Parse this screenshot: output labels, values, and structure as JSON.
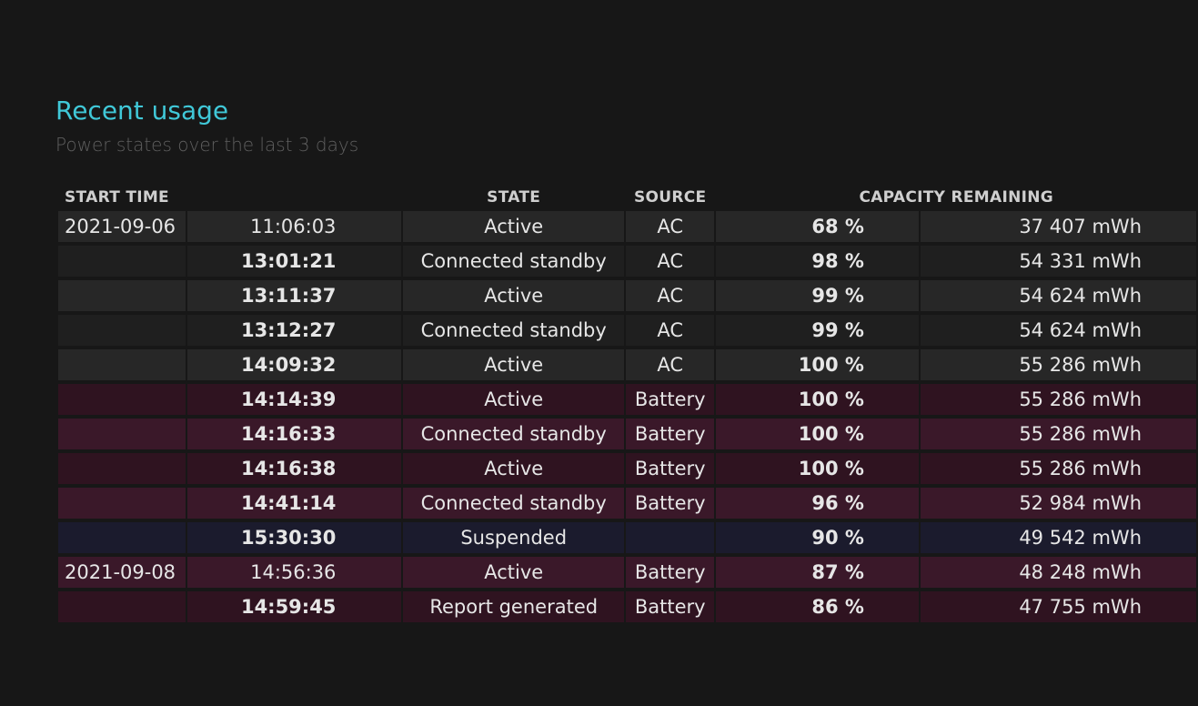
{
  "report": {
    "title": "Recent usage",
    "subtitle": "Power states over the last 3 days"
  },
  "columns": {
    "start_time": "START TIME",
    "state": "STATE",
    "source": "SOURCE",
    "capacity": "CAPACITY REMAINING"
  },
  "rows": [
    {
      "date": "2021-09-06",
      "time": "11:06:03",
      "state": "Active",
      "source": "AC",
      "percent": "68 %",
      "mwh": "37 407 mWh"
    },
    {
      "date": "",
      "time": "13:01:21",
      "state": "Connected standby",
      "source": "AC",
      "percent": "98 %",
      "mwh": "54 331 mWh"
    },
    {
      "date": "",
      "time": "13:11:37",
      "state": "Active",
      "source": "AC",
      "percent": "99 %",
      "mwh": "54 624 mWh"
    },
    {
      "date": "",
      "time": "13:12:27",
      "state": "Connected standby",
      "source": "AC",
      "percent": "99 %",
      "mwh": "54 624 mWh"
    },
    {
      "date": "",
      "time": "14:09:32",
      "state": "Active",
      "source": "AC",
      "percent": "100 %",
      "mwh": "55 286 mWh"
    },
    {
      "date": "",
      "time": "14:14:39",
      "state": "Active",
      "source": "Battery",
      "percent": "100 %",
      "mwh": "55 286 mWh"
    },
    {
      "date": "",
      "time": "14:16:33",
      "state": "Connected standby",
      "source": "Battery",
      "percent": "100 %",
      "mwh": "55 286 mWh"
    },
    {
      "date": "",
      "time": "14:16:38",
      "state": "Active",
      "source": "Battery",
      "percent": "100 %",
      "mwh": "55 286 mWh"
    },
    {
      "date": "",
      "time": "14:41:14",
      "state": "Connected standby",
      "source": "Battery",
      "percent": "96 %",
      "mwh": "52 984 mWh"
    },
    {
      "date": "",
      "time": "15:30:30",
      "state": "Suspended",
      "source": "",
      "percent": "90 %",
      "mwh": "49 542 mWh"
    },
    {
      "date": "2021-09-08",
      "time": "14:56:36",
      "state": "Active",
      "source": "Battery",
      "percent": "87 %",
      "mwh": "48 248 mWh"
    },
    {
      "date": "",
      "time": "14:59:45",
      "state": "Report generated",
      "source": "Battery",
      "percent": "86 %",
      "mwh": "47 755 mWh"
    }
  ],
  "colors": {
    "title": "#40c8d8",
    "ac_row": "#272727",
    "battery_row": "#2f1320",
    "suspended_row": "#1b1b2d"
  }
}
